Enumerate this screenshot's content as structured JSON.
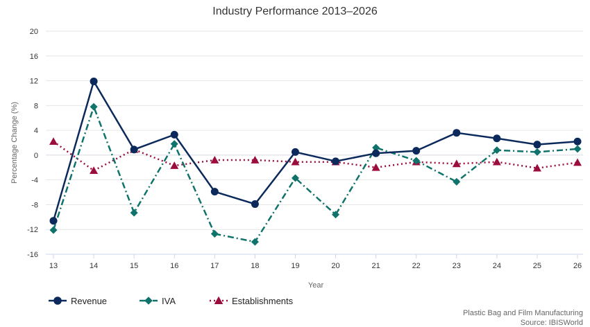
{
  "chart_data": {
    "type": "line",
    "title": "Industry Performance 2013–2026",
    "xlabel": "Year",
    "ylabel": "Percentage Change (%)",
    "categories": [
      "13",
      "14",
      "15",
      "16",
      "17",
      "18",
      "19",
      "20",
      "21",
      "22",
      "23",
      "24",
      "25",
      "26"
    ],
    "ylim": [
      -16,
      20
    ],
    "yticks": [
      20,
      16,
      12,
      8,
      4,
      0,
      -4,
      -8,
      -12,
      -16
    ],
    "grid": true,
    "legend_position": "bottom-left",
    "series": [
      {
        "name": "Revenue",
        "color": "#0b2a5b",
        "marker": "circle",
        "dash": "solid",
        "values": [
          -10.6,
          11.9,
          0.9,
          3.3,
          -5.9,
          -7.9,
          0.5,
          -1.0,
          0.3,
          0.7,
          3.6,
          2.7,
          1.7,
          2.2
        ]
      },
      {
        "name": "IVA",
        "color": "#10736b",
        "marker": "diamond",
        "dash": "dashdot",
        "values": [
          -12.1,
          7.8,
          -9.3,
          1.8,
          -12.7,
          -14.0,
          -3.7,
          -9.6,
          1.2,
          -0.9,
          -4.3,
          0.8,
          0.5,
          1.0
        ]
      },
      {
        "name": "Establishments",
        "color": "#9b0d3c",
        "marker": "triangle",
        "dash": "dotted",
        "values": [
          2.2,
          -2.5,
          0.9,
          -1.7,
          -0.8,
          -0.8,
          -1.1,
          -1.1,
          -2.0,
          -1.1,
          -1.4,
          -1.1,
          -2.1,
          -1.2
        ]
      }
    ]
  },
  "footer": {
    "line1": "Plastic Bag and Film Manufacturing",
    "line2": "Source: IBISWorld"
  }
}
